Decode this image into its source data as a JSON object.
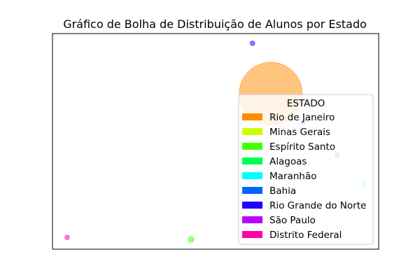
{
  "chart_data": {
    "type": "scatter",
    "title": "Gráfico de Bolha de Distribuição de Alunos por Estado",
    "xlabel": "",
    "ylabel": "",
    "grid": false,
    "axes_ticks_visible": false,
    "xlim": [
      0,
      1
    ],
    "ylim": [
      0,
      1
    ],
    "legend": {
      "title": "ESTADO",
      "placement": "bottom-right",
      "entries": [
        {
          "label": "Rio de Janeiro",
          "color": "#ff8c00"
        },
        {
          "label": "Minas Gerais",
          "color": "#ccff00"
        },
        {
          "label": "Espírito Santo",
          "color": "#44ff00"
        },
        {
          "label": "Alagoas",
          "color": "#00ff55"
        },
        {
          "label": "Maranhão",
          "color": "#00ffff"
        },
        {
          "label": "Bahia",
          "color": "#0066ff"
        },
        {
          "label": "Rio Grande do Norte",
          "color": "#2200ff"
        },
        {
          "label": "São Paulo",
          "color": "#bb00ff"
        },
        {
          "label": "Distrito Federal",
          "color": "#ff00aa"
        }
      ]
    },
    "series": [
      {
        "name": "Rio de Janeiro",
        "color": "#ff8c00",
        "x": 0.669,
        "y": 0.721,
        "size": 900
      },
      {
        "name": "Minas Gerais",
        "color": "#ccff00",
        "x": 0.823,
        "y": 0.477,
        "size": 6
      },
      {
        "name": "Espírito Santo",
        "color": "#44ff00",
        "x": 0.425,
        "y": 0.045,
        "size": 8
      },
      {
        "name": "Alagoas",
        "color": "#00ff55",
        "x": 0.664,
        "y": 0.19,
        "size": 5
      },
      {
        "name": "Maranhão",
        "color": "#00ffff",
        "x": 0.955,
        "y": 0.3,
        "size": 5
      },
      {
        "name": "Bahia",
        "color": "#0066ff",
        "x": 0.77,
        "y": 0.59,
        "size": 5
      },
      {
        "name": "Rio Grande do Norte",
        "color": "#2200ff",
        "x": 0.613,
        "y": 0.955,
        "size": 5
      },
      {
        "name": "São Paulo",
        "color": "#bb00ff",
        "x": 0.873,
        "y": 0.437,
        "size": 5
      },
      {
        "name": "Distrito Federal",
        "color": "#ff00aa",
        "x": 0.045,
        "y": 0.055,
        "size": 5
      }
    ]
  }
}
